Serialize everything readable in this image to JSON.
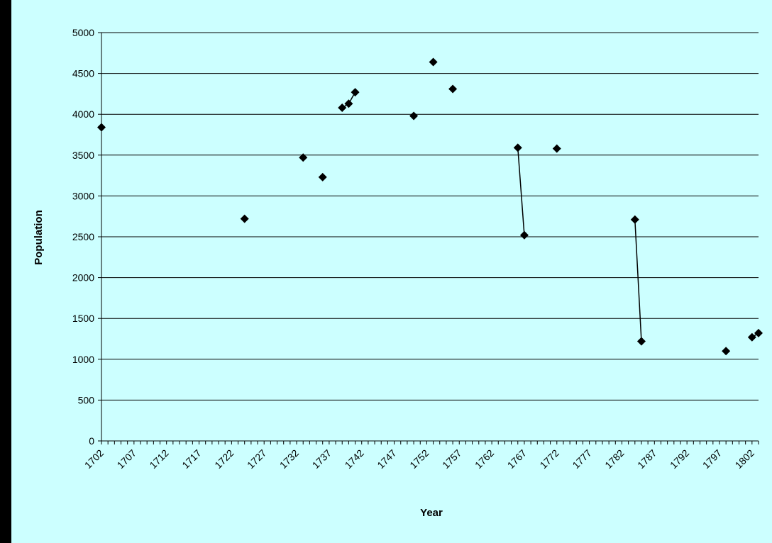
{
  "colors": {
    "background": "#ccffff",
    "frame": "#000000",
    "marker": "#000000",
    "gridline": "#000000"
  },
  "chart_data": {
    "type": "scatter",
    "title": "",
    "xlabel": "Year",
    "ylabel": "Population",
    "xlim": [
      1702,
      1803
    ],
    "ylim": [
      0,
      5000
    ],
    "grid": true,
    "legend": "none",
    "x_tick_labels": [
      "1702",
      "1707",
      "1712",
      "1717",
      "1722",
      "1727",
      "1732",
      "1737",
      "1742",
      "1747",
      "1752",
      "1757",
      "1762",
      "1767",
      "1772",
      "1777",
      "1782",
      "1787",
      "1792",
      "1797",
      "1802"
    ],
    "y_tick_labels": [
      "0",
      "500",
      "1000",
      "1500",
      "2000",
      "2500",
      "3000",
      "3500",
      "4000",
      "4500",
      "5000"
    ],
    "series": [
      {
        "marker": "diamond",
        "points": [
          {
            "x": 1702,
            "y": 3840
          },
          {
            "x": 1724,
            "y": 2720
          },
          {
            "x": 1733,
            "y": 3470
          },
          {
            "x": 1736,
            "y": 3230
          },
          {
            "x": 1739,
            "y": 4080
          },
          {
            "x": 1740,
            "y": 4130
          },
          {
            "x": 1741,
            "y": 4270
          },
          {
            "x": 1750,
            "y": 3980
          },
          {
            "x": 1753,
            "y": 4640
          },
          {
            "x": 1756,
            "y": 4310
          },
          {
            "x": 1766,
            "y": 3590
          },
          {
            "x": 1767,
            "y": 2520
          },
          {
            "x": 1772,
            "y": 3580
          },
          {
            "x": 1784,
            "y": 2710
          },
          {
            "x": 1785,
            "y": 1220
          },
          {
            "x": 1798,
            "y": 1100
          },
          {
            "x": 1802,
            "y": 1270
          },
          {
            "x": 1803,
            "y": 1320
          }
        ],
        "connected_pairs": [
          [
            4,
            5
          ],
          [
            5,
            6
          ],
          [
            10,
            11
          ],
          [
            13,
            14
          ],
          [
            16,
            17
          ]
        ]
      }
    ]
  }
}
